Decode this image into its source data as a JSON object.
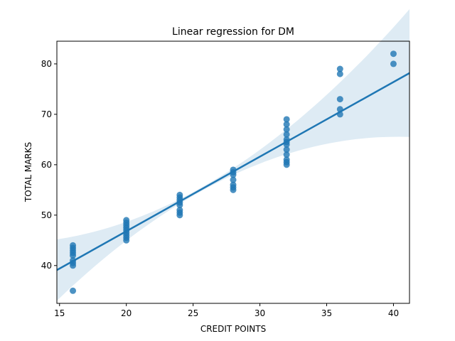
{
  "chart_data": {
    "type": "scatter",
    "title": "Linear regression for DM",
    "xlabel": "CREDIT POINTS",
    "ylabel": "TOTAL MARKS",
    "xlim": [
      14.8,
      41.2
    ],
    "ylim": [
      32.5,
      84.5
    ],
    "xticks": [
      15,
      20,
      25,
      30,
      35,
      40
    ],
    "yticks": [
      40,
      50,
      60,
      70,
      80
    ],
    "grid": false,
    "legend": "none",
    "colors": {
      "points": "#1f77b4",
      "line": "#1f77b4",
      "band": "#1f77b4"
    },
    "points": [
      {
        "x": 16,
        "y": 35
      },
      {
        "x": 16,
        "y": 40
      },
      {
        "x": 16,
        "y": 40.5
      },
      {
        "x": 16,
        "y": 41
      },
      {
        "x": 16,
        "y": 42
      },
      {
        "x": 16,
        "y": 42.5
      },
      {
        "x": 16,
        "y": 43
      },
      {
        "x": 16,
        "y": 43.5
      },
      {
        "x": 16,
        "y": 44
      },
      {
        "x": 20,
        "y": 45
      },
      {
        "x": 20,
        "y": 45.5
      },
      {
        "x": 20,
        "y": 46
      },
      {
        "x": 20,
        "y": 46.5
      },
      {
        "x": 20,
        "y": 47
      },
      {
        "x": 20,
        "y": 47.5
      },
      {
        "x": 20,
        "y": 48
      },
      {
        "x": 20,
        "y": 48.5
      },
      {
        "x": 20,
        "y": 49
      },
      {
        "x": 24,
        "y": 50
      },
      {
        "x": 24,
        "y": 50.5
      },
      {
        "x": 24,
        "y": 51
      },
      {
        "x": 24,
        "y": 52
      },
      {
        "x": 24,
        "y": 52.5
      },
      {
        "x": 24,
        "y": 53
      },
      {
        "x": 24,
        "y": 53.5
      },
      {
        "x": 24,
        "y": 54
      },
      {
        "x": 28,
        "y": 55
      },
      {
        "x": 28,
        "y": 55.5
      },
      {
        "x": 28,
        "y": 56
      },
      {
        "x": 28,
        "y": 57
      },
      {
        "x": 28,
        "y": 58
      },
      {
        "x": 28,
        "y": 58.5
      },
      {
        "x": 28,
        "y": 59
      },
      {
        "x": 32,
        "y": 60
      },
      {
        "x": 32,
        "y": 60.5
      },
      {
        "x": 32,
        "y": 61
      },
      {
        "x": 32,
        "y": 62
      },
      {
        "x": 32,
        "y": 63
      },
      {
        "x": 32,
        "y": 64
      },
      {
        "x": 32,
        "y": 64.5
      },
      {
        "x": 32,
        "y": 65
      },
      {
        "x": 32,
        "y": 66
      },
      {
        "x": 32,
        "y": 67
      },
      {
        "x": 32,
        "y": 68
      },
      {
        "x": 32,
        "y": 69
      },
      {
        "x": 36,
        "y": 70
      },
      {
        "x": 36,
        "y": 71
      },
      {
        "x": 36,
        "y": 73
      },
      {
        "x": 36,
        "y": 78
      },
      {
        "x": 36,
        "y": 79
      },
      {
        "x": 40,
        "y": 80
      },
      {
        "x": 40,
        "y": 82
      }
    ],
    "regression": {
      "slope": 1.48,
      "intercept": 17.2
    }
  }
}
